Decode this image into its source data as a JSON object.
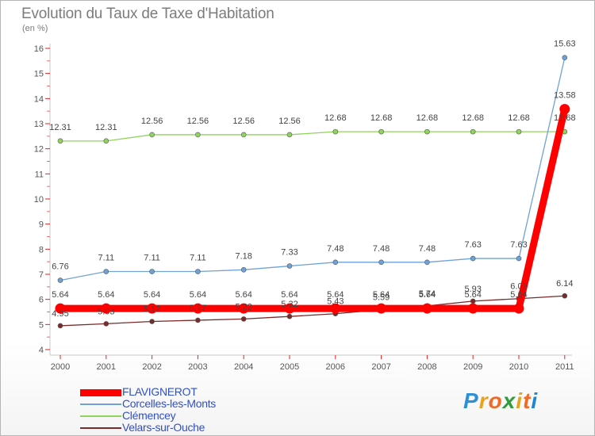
{
  "title": "Evolution du Taux de Taxe d'Habitation",
  "unit_label": "(en %)",
  "logo": {
    "text": "Proxiti",
    "colors": [
      "#2e8fd6",
      "#e8a21c",
      "#f06a24",
      "#2e9c3c",
      "#e8a21c",
      "#f06a24",
      "#1c86d6"
    ]
  },
  "chart_data": {
    "type": "line",
    "title": "Evolution du Taux de Taxe d'Habitation",
    "ylabel": "(en %)",
    "xlabel": "",
    "x": [
      "2000",
      "2001",
      "2002",
      "2003",
      "2004",
      "2005",
      "2006",
      "2007",
      "2008",
      "2009",
      "2010",
      "2011"
    ],
    "ylim": [
      4,
      16
    ],
    "yticks": [
      "4",
      "5",
      "6",
      "7",
      "8",
      "9",
      "10",
      "11",
      "12",
      "13",
      "14",
      "15",
      "16"
    ],
    "grid": false,
    "legend_position": "bottom-left",
    "series": [
      {
        "name": "FLAVIGNEROT",
        "color": "#ff0000",
        "values": [
          5.64,
          5.64,
          5.64,
          5.64,
          5.64,
          5.64,
          5.64,
          5.64,
          5.64,
          5.64,
          5.64,
          13.58
        ],
        "labels": [
          "5.64",
          "5.64",
          "5.64",
          "5.64",
          "5.64",
          "5.64",
          "5.64",
          "5.64",
          "5.64",
          "5.64",
          "5.64",
          "13.58"
        ]
      },
      {
        "name": "Corcelles-les-Monts",
        "color": "#6fa2d6",
        "values": [
          6.76,
          7.11,
          7.11,
          7.11,
          7.18,
          7.33,
          7.48,
          7.48,
          7.48,
          7.63,
          7.63,
          15.63
        ],
        "labels": [
          "6.76",
          "7.11",
          "7.11",
          "7.11",
          "7.18",
          "7.33",
          "7.48",
          "7.48",
          "7.48",
          "7.63",
          "7.63",
          "15.63"
        ]
      },
      {
        "name": "Clémencey",
        "color": "#8fd45c",
        "values": [
          12.31,
          12.31,
          12.56,
          12.56,
          12.56,
          12.56,
          12.68,
          12.68,
          12.68,
          12.68,
          12.68,
          12.68
        ],
        "labels": [
          "12.31",
          "12.31",
          "12.56",
          "12.56",
          "12.56",
          "12.56",
          "12.68",
          "12.68",
          "12.68",
          "12.68",
          "12.68",
          "12.68"
        ]
      },
      {
        "name": "Velars-sur-Ouche",
        "color": "#7a2a2a",
        "values": [
          4.95,
          5.03,
          5.12,
          5.17,
          5.22,
          5.32,
          5.43,
          5.59,
          5.74,
          5.93,
          6.03,
          6.14
        ],
        "labels": [
          "4.95",
          "5.03",
          "5.12",
          "5.17",
          "5.22",
          "5.32",
          "5.43",
          "5.59",
          "5.74",
          "5.93",
          "6.03",
          "6.14"
        ]
      }
    ]
  }
}
